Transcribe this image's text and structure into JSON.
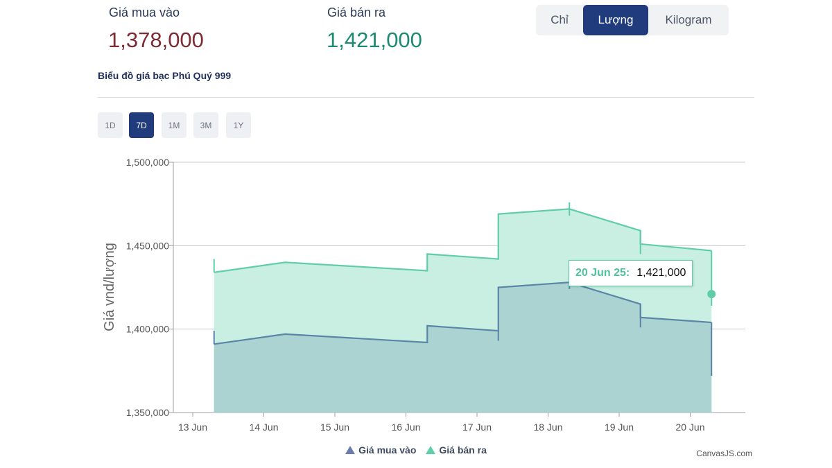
{
  "prices": {
    "buy_label": "Giá mua vào",
    "buy_value": "1,378,000",
    "sell_label": "Giá bán ra",
    "sell_value": "1,421,000"
  },
  "unit_toggle": {
    "options": [
      "Chỉ",
      "Lượng",
      "Kilogram"
    ],
    "selected": "Lượng"
  },
  "chart_title": "Biểu đồ giá bạc Phú Quý 999",
  "ranges": {
    "options": [
      "1D",
      "7D",
      "1M",
      "3M",
      "1Y"
    ],
    "selected": "7D"
  },
  "tooltip": {
    "date": "20 Jun 25:",
    "value": "1,421,000"
  },
  "legend": {
    "buy": "Giá mua vào",
    "sell": "Giá bán ra"
  },
  "credit": "CanvasJS.com",
  "colors": {
    "buy_line": "#5b85a6",
    "buy_fill": "#aad3d1",
    "sell_line": "#5fcda8",
    "sell_fill": "#c8efe1",
    "buy_legend": "#6b7bab",
    "sell_legend": "#5fcda8"
  },
  "chart_data": {
    "type": "area",
    "ylabel": "Giá vnd/lượng",
    "ylim": [
      1350000,
      1500000
    ],
    "yticks": [
      1350000,
      1400000,
      1450000,
      1500000
    ],
    "ytick_labels": [
      "1,350,000",
      "1,400,000",
      "1,450,000",
      "1,500,000"
    ],
    "xticks": [
      "13 Jun",
      "14 Jun",
      "15 Jun",
      "16 Jun",
      "17 Jun",
      "18 Jun",
      "19 Jun",
      "20 Jun"
    ],
    "grid": true,
    "legend_position": "bottom",
    "series": [
      {
        "name": "Giá bán ra",
        "key": "sell",
        "points": [
          {
            "x": 13.3,
            "y": 1434000
          },
          {
            "x": 14.3,
            "y": 1440000
          },
          {
            "x": 16.3,
            "y": 1435000
          },
          {
            "x": 16.3,
            "y": 1445000
          },
          {
            "x": 17.3,
            "y": 1442000
          },
          {
            "x": 17.3,
            "y": 1469000
          },
          {
            "x": 18.3,
            "y": 1472000
          },
          {
            "x": 19.3,
            "y": 1459000
          },
          {
            "x": 19.3,
            "y": 1451000
          },
          {
            "x": 20.3,
            "y": 1447000
          }
        ],
        "ticks": [
          {
            "x": 13.3,
            "y": [
              1434000,
              1442000
            ]
          },
          {
            "x": 18.3,
            "y": [
              1468000,
              1476000
            ]
          },
          {
            "x": 19.3,
            "y": [
              1445000,
              1459000
            ]
          },
          {
            "x": 20.3,
            "y": [
              1414000,
              1447000
            ]
          }
        ],
        "marker": {
          "x": 20.3,
          "y": 1421000
        }
      },
      {
        "name": "Giá mua vào",
        "key": "buy",
        "points": [
          {
            "x": 13.3,
            "y": 1391000
          },
          {
            "x": 14.3,
            "y": 1397000
          },
          {
            "x": 16.3,
            "y": 1392000
          },
          {
            "x": 16.3,
            "y": 1402000
          },
          {
            "x": 17.3,
            "y": 1399000
          },
          {
            "x": 17.3,
            "y": 1425000
          },
          {
            "x": 18.3,
            "y": 1428000
          },
          {
            "x": 19.3,
            "y": 1415000
          },
          {
            "x": 19.3,
            "y": 1407000
          },
          {
            "x": 20.3,
            "y": 1404000
          }
        ],
        "ticks": [
          {
            "x": 13.3,
            "y": [
              1391000,
              1399000
            ]
          },
          {
            "x": 17.3,
            "y": [
              1393000,
              1399000
            ]
          },
          {
            "x": 18.3,
            "y": [
              1424000,
              1432000
            ]
          },
          {
            "x": 19.3,
            "y": [
              1401000,
              1415000
            ]
          },
          {
            "x": 20.3,
            "y": [
              1372000,
              1404000
            ]
          }
        ]
      }
    ]
  }
}
